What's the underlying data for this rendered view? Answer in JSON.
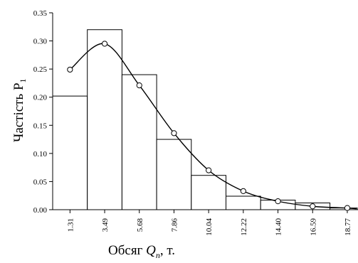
{
  "chart_data": {
    "type": "bar",
    "categories": [
      "1.31",
      "3.49",
      "5.68",
      "7.86",
      "10.04",
      "12.22",
      "14.40",
      "16.59",
      "18.77"
    ],
    "series": [
      {
        "kind": "bar",
        "values": [
          0.202,
          0.32,
          0.24,
          0.125,
          0.061,
          0.024,
          0.017,
          0.012,
          0.003
        ]
      },
      {
        "kind": "line",
        "values": [
          0.249,
          0.295,
          0.221,
          0.136,
          0.07,
          0.033,
          0.015,
          0.006,
          0.003
        ]
      }
    ],
    "ylabel": "Частість P",
    "ylabel_sub": "1",
    "xlabel_prefix": "Обсяг ",
    "xlabel_var": "Q",
    "xlabel_sub": "п",
    "xlabel_suffix": ", т.",
    "ylim": [
      0,
      0.35
    ],
    "yticks": [
      "0.00",
      "0.05",
      "0.10",
      "0.15",
      "0.20",
      "0.25",
      "0.30",
      "0.35"
    ],
    "grid": false,
    "legend": "none"
  }
}
